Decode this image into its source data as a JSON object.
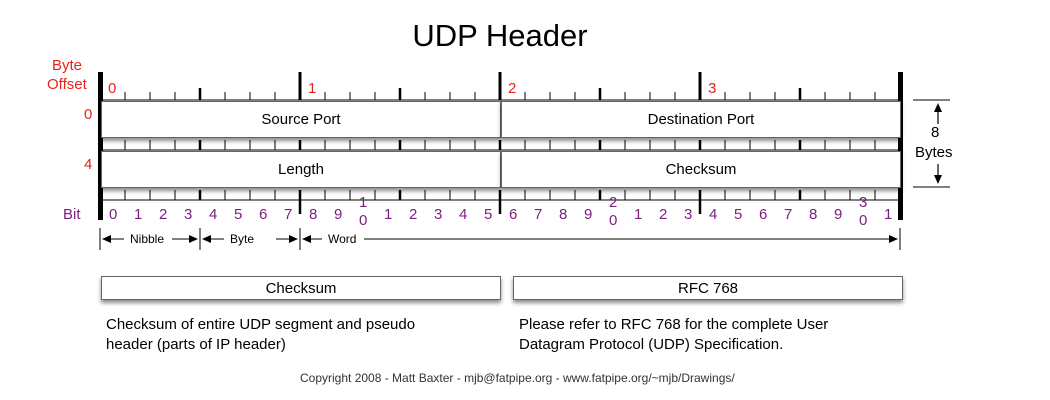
{
  "title": "UDP Header",
  "offset_label_line1": "Byte",
  "offset_label_line2": "Offset",
  "byte_numbers": [
    "0",
    "1",
    "2",
    "3"
  ],
  "row_offsets": [
    "0",
    "4"
  ],
  "bit_label": "Bit",
  "bit_numbers": [
    "0",
    "1",
    "2",
    "3",
    "4",
    "5",
    "6",
    "7",
    "8",
    "9",
    "10",
    "1",
    "2",
    "3",
    "4",
    "5",
    "6",
    "7",
    "8",
    "9",
    "20",
    "1",
    "2",
    "3",
    "4",
    "5",
    "6",
    "7",
    "8",
    "9",
    "30",
    "1"
  ],
  "fields": {
    "source_port": "Source Port",
    "destination_port": "Destination Port",
    "length": "Length",
    "checksum": "Checksum"
  },
  "size_note": {
    "number": "8",
    "unit": "Bytes"
  },
  "scale_labels": {
    "nibble": "Nibble",
    "byte": "Byte",
    "word": "Word"
  },
  "notes": [
    {
      "heading": "Checksum",
      "text_line1": "Checksum of entire UDP segment and pseudo",
      "text_line2": "header (parts of IP header)"
    },
    {
      "heading": "RFC 768",
      "text_line1": "Please refer to RFC 768 for the complete User",
      "text_line2": "Datagram Protocol (UDP) Specification."
    }
  ],
  "copyright": "Copyright 2008 - Matt Baxter - mjb@fatpipe.org - www.fatpipe.org/~mjb/Drawings/",
  "colors": {
    "offset_red": "#e8231e",
    "bit_purple": "#7b1e7e"
  }
}
